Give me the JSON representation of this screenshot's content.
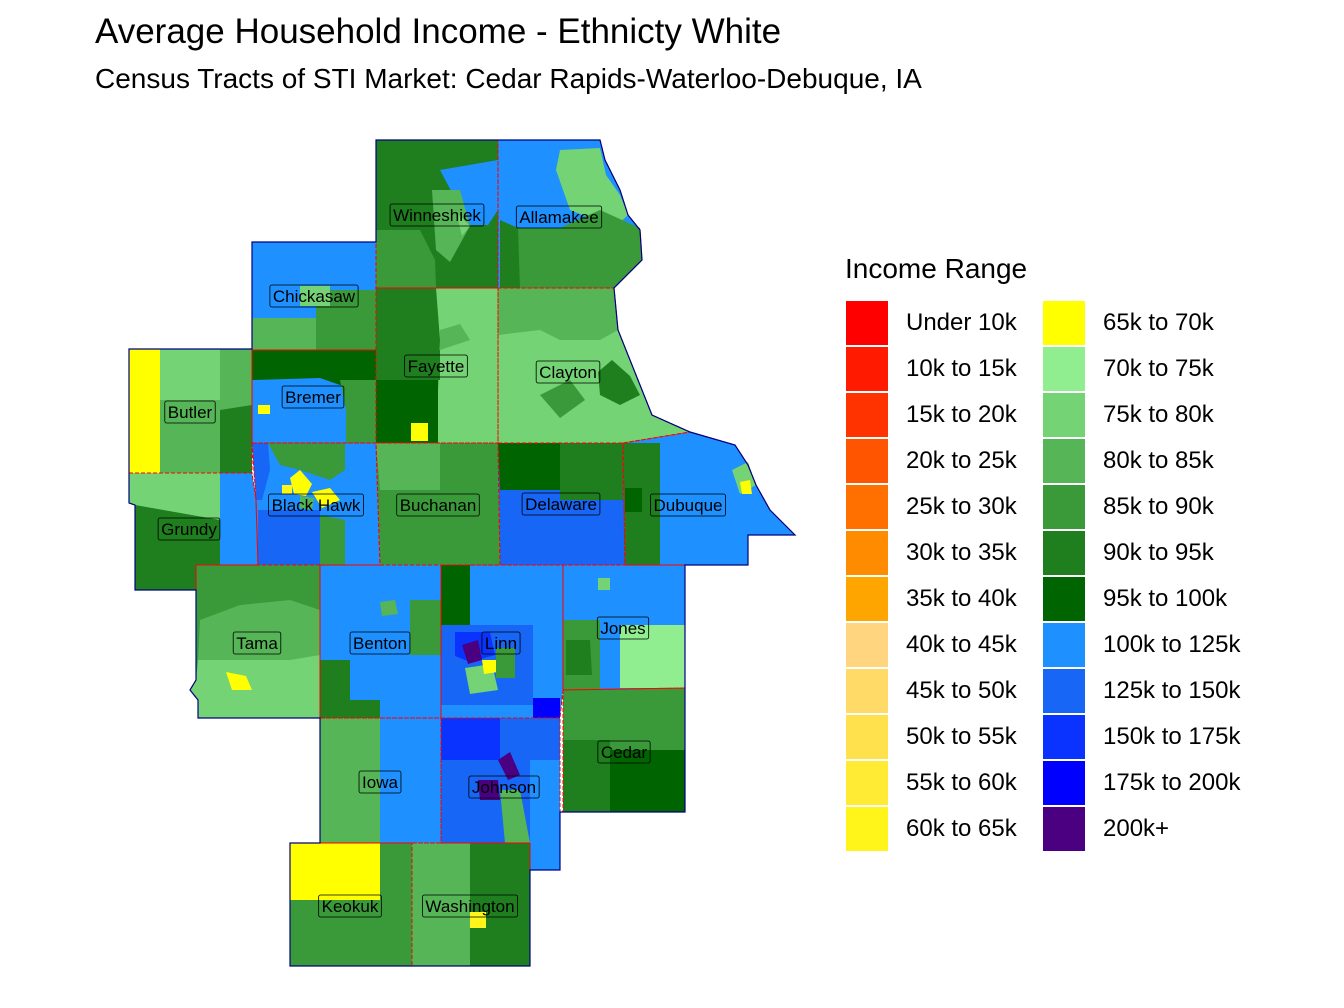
{
  "title": "Average Household Income - Ethnicty White",
  "subtitle": "Census Tracts of STI Market: Cedar Rapids-Waterloo-Debuque, IA",
  "legend": {
    "title": "Income Range",
    "items": [
      {
        "label": "Under 10k",
        "color": "#FF0000"
      },
      {
        "label": "10k to 15k",
        "color": "#FF1A00"
      },
      {
        "label": "15k to 20k",
        "color": "#FF3300"
      },
      {
        "label": "20k to 25k",
        "color": "#FF5500"
      },
      {
        "label": "25k to 30k",
        "color": "#FF7000"
      },
      {
        "label": "30k to 35k",
        "color": "#FF8C00"
      },
      {
        "label": "35k to 40k",
        "color": "#FFA500"
      },
      {
        "label": "40k to 45k",
        "color": "#FFD580"
      },
      {
        "label": "45k to 50k",
        "color": "#FFDA66"
      },
      {
        "label": "50k to 55k",
        "color": "#FFE14D"
      },
      {
        "label": "55k to 60k",
        "color": "#FFEB33"
      },
      {
        "label": "60k to 65k",
        "color": "#FFF51A"
      },
      {
        "label": "65k to 70k",
        "color": "#FFFF00"
      },
      {
        "label": "70k to 75k",
        "color": "#90EE90"
      },
      {
        "label": "75k to 80k",
        "color": "#74D374"
      },
      {
        "label": "80k to 85k",
        "color": "#56B556"
      },
      {
        "label": "85k to 90k",
        "color": "#3A9A3A"
      },
      {
        "label": "90k to 95k",
        "color": "#1F7F1F"
      },
      {
        "label": "95k to 100k",
        "color": "#006400"
      },
      {
        "label": "100k to 125k",
        "color": "#1E90FF"
      },
      {
        "label": "125k to 150k",
        "color": "#1766F5"
      },
      {
        "label": "150k to 175k",
        "color": "#0A33FF"
      },
      {
        "label": "175k to 200k",
        "color": "#0000FF"
      },
      {
        "label": "200k+",
        "color": "#4B0082"
      }
    ]
  },
  "counties": [
    {
      "name": "Winneshiek",
      "dominant_range": "90k to 95k"
    },
    {
      "name": "Allamakee",
      "dominant_range": "100k to 125k"
    },
    {
      "name": "Chickasaw",
      "dominant_range": "100k to 125k"
    },
    {
      "name": "Fayette",
      "dominant_range": "75k to 80k"
    },
    {
      "name": "Clayton",
      "dominant_range": "75k to 80k"
    },
    {
      "name": "Butler",
      "dominant_range": "80k to 85k"
    },
    {
      "name": "Bremer",
      "dominant_range": "100k to 125k"
    },
    {
      "name": "Black Hawk",
      "dominant_range": "100k to 125k"
    },
    {
      "name": "Buchanan",
      "dominant_range": "85k to 90k"
    },
    {
      "name": "Delaware",
      "dominant_range": "125k to 150k"
    },
    {
      "name": "Dubuque",
      "dominant_range": "100k to 125k"
    },
    {
      "name": "Grundy",
      "dominant_range": "90k to 95k"
    },
    {
      "name": "Tama",
      "dominant_range": "85k to 90k"
    },
    {
      "name": "Benton",
      "dominant_range": "100k to 125k"
    },
    {
      "name": "Linn",
      "dominant_range": "100k to 125k"
    },
    {
      "name": "Jones",
      "dominant_range": "100k to 125k"
    },
    {
      "name": "Iowa",
      "dominant_range": "80k to 85k"
    },
    {
      "name": "Johnson",
      "dominant_range": "125k to 150k"
    },
    {
      "name": "Cedar",
      "dominant_range": "90k to 95k"
    },
    {
      "name": "Keokuk",
      "dominant_range": "85k to 90k"
    },
    {
      "name": "Washington",
      "dominant_range": "85k to 90k"
    }
  ],
  "colors": {
    "county_border": "#FF0000",
    "outer_border": "#000080",
    "label_box_border": "#000000"
  }
}
